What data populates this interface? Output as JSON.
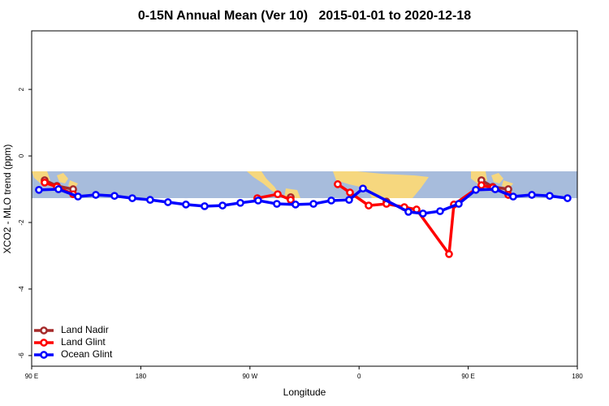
{
  "chart_data": {
    "type": "line",
    "title": "0-15N Annual Mean (Ver 10)   2015-01-01 to 2020-12-18",
    "x_label": "Longitude",
    "y_label": "XCO2 - MLO trend (ppm)",
    "xlim": [
      90,
      540
    ],
    "ylim": [
      -6.32,
      3.76
    ],
    "xticks": [
      {
        "value": 90,
        "label": "90 E"
      },
      {
        "value": 180,
        "label": "180"
      },
      {
        "value": 270,
        "label": "90 W"
      },
      {
        "value": 360,
        "label": "0"
      },
      {
        "value": 450,
        "label": "90 E"
      },
      {
        "value": 540,
        "label": "180"
      }
    ],
    "yticks": [
      -6,
      -4,
      -2,
      0,
      2
    ],
    "legend": "bottom-left",
    "series": [
      {
        "name": "Land Nadir",
        "color": "#a52a2a",
        "x": [
          100.7,
          110.8,
          124.2,
          null,
          303.6,
          null,
          382.6,
          null,
          460.9,
          470.3,
          483.1
        ],
        "values": [
          -0.73,
          -0.9,
          -1.0,
          null,
          -1.24,
          null,
          -1.37,
          null,
          -0.73,
          -0.93,
          -1.0
        ]
      },
      {
        "name": "Land Glint",
        "color": "#ff0000",
        "x": [
          100.7,
          110.8,
          124.2,
          null,
          276.1,
          292.9,
          303.6,
          null,
          342.4,
          352.5,
          367.9,
          382.6,
          397.3,
          407.4,
          434.2,
          438.2,
          460.9,
          470.3,
          483.1
        ],
        "values": [
          -0.8,
          -0.93,
          -1.15,
          null,
          -1.27,
          -1.15,
          -1.32,
          null,
          -0.85,
          -1.1,
          -1.49,
          -1.44,
          -1.54,
          -1.61,
          -2.95,
          -1.46,
          -0.88,
          -0.95,
          -1.17
        ]
      },
      {
        "name": "Ocean Glint",
        "color": "#0000ff",
        "x": [
          96.0,
          112.1,
          128.2,
          142.9,
          158.3,
          173.0,
          187.7,
          202.4,
          217.2,
          232.6,
          247.4,
          262.1,
          276.8,
          292.2,
          307.6,
          322.4,
          337.1,
          351.8,
          363.2,
          400.7,
          412.7,
          426.8,
          442.2,
          456.3,
          472.3,
          487.1,
          502.5,
          517.2,
          531.9
        ],
        "values": [
          -1.02,
          -1.0,
          -1.22,
          -1.17,
          -1.2,
          -1.27,
          -1.32,
          -1.39,
          -1.46,
          -1.51,
          -1.49,
          -1.41,
          -1.34,
          -1.44,
          -1.46,
          -1.44,
          -1.34,
          -1.32,
          -0.98,
          -1.68,
          -1.73,
          -1.66,
          -1.44,
          -1.02,
          -1.0,
          -1.22,
          -1.17,
          -1.2,
          -1.27
        ]
      }
    ]
  }
}
